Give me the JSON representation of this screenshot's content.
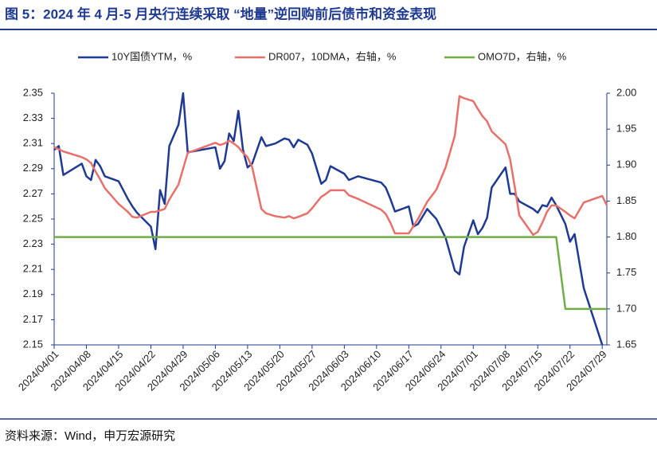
{
  "chart_data": {
    "type": "line",
    "title": "图 5：2024 年 4 月-5 月央行连续采取 “地量”逆回购前后债市和资金表现",
    "source": "资料来源：Wind，申万宏源研究",
    "x": [
      "2024/04/01",
      "2024/04/02",
      "2024/04/03",
      "2024/04/07",
      "2024/04/08",
      "2024/04/09",
      "2024/04/10",
      "2024/04/11",
      "2024/04/12",
      "2024/04/15",
      "2024/04/17",
      "2024/04/18",
      "2024/04/19",
      "2024/04/22",
      "2024/04/23",
      "2024/04/24",
      "2024/04/25",
      "2024/04/26",
      "2024/04/28",
      "2024/04/29",
      "2024/04/30",
      "2024/05/06",
      "2024/05/07",
      "2024/05/08",
      "2024/05/09",
      "2024/05/10",
      "2024/05/11",
      "2024/05/12",
      "2024/05/13",
      "2024/05/14",
      "2024/05/16",
      "2024/05/17",
      "2024/05/19",
      "2024/05/21",
      "2024/05/22",
      "2024/05/23",
      "2024/05/24",
      "2024/05/26",
      "2024/05/27",
      "2024/05/29",
      "2024/05/30",
      "2024/05/31",
      "2024/06/03",
      "2024/06/04",
      "2024/06/06",
      "2024/06/11",
      "2024/06/12",
      "2024/06/13",
      "2024/06/14",
      "2024/06/17",
      "2024/06/18",
      "2024/06/19",
      "2024/06/21",
      "2024/06/23",
      "2024/06/25",
      "2024/06/27",
      "2024/06/28",
      "2024/06/29",
      "2024/07/01",
      "2024/07/02",
      "2024/07/03",
      "2024/07/04",
      "2024/07/05",
      "2024/07/08",
      "2024/07/09",
      "2024/07/10",
      "2024/07/11",
      "2024/07/14",
      "2024/07/15",
      "2024/07/16",
      "2024/07/17",
      "2024/07/18",
      "2024/07/19",
      "2024/07/21",
      "2024/07/22",
      "2024/07/23",
      "2024/07/25",
      "2024/07/29",
      "2024/07/30"
    ],
    "xlim": [
      "2024/04/01",
      "2024/07/30"
    ],
    "xticks": [
      "2024/04/01",
      "2024/04/08",
      "2024/04/15",
      "2024/04/22",
      "2024/04/29",
      "2024/05/06",
      "2024/05/13",
      "2024/05/20",
      "2024/05/27",
      "2024/06/03",
      "2024/06/10",
      "2024/06/17",
      "2024/06/24",
      "2024/07/01",
      "2024/07/08",
      "2024/07/15",
      "2024/07/22",
      "2024/07/29"
    ],
    "ylim": [
      2.15,
      2.35
    ],
    "yticks": [
      2.15,
      2.17,
      2.19,
      2.21,
      2.23,
      2.25,
      2.27,
      2.29,
      2.31,
      2.33,
      2.35
    ],
    "y2lim": [
      1.65,
      2.0
    ],
    "y2ticks": [
      1.65,
      {
        "value": 1.7,
        "label": "1.70"
      },
      1.75,
      {
        "value": 1.8,
        "label": "1.80"
      },
      1.85,
      {
        "value": 1.9,
        "label": "1.90"
      },
      1.95,
      {
        "value": 2.0,
        "label": "2.00"
      }
    ],
    "grid": false,
    "legend": "top",
    "series": [
      {
        "name": "10Y国债YTM，%",
        "color": "#1f3a93",
        "values": [
          2.305,
          2.308,
          2.285,
          2.294,
          2.284,
          2.281,
          2.297,
          2.292,
          2.284,
          2.28,
          2.266,
          2.26,
          2.255,
          2.244,
          2.226,
          2.273,
          2.262,
          2.308,
          2.325,
          2.35,
          2.303,
          2.307,
          2.29,
          2.296,
          2.318,
          2.312,
          2.336,
          2.305,
          2.291,
          2.294,
          2.315,
          2.308,
          2.31,
          2.314,
          2.313,
          2.307,
          2.313,
          2.309,
          2.302,
          2.278,
          2.281,
          2.292,
          2.286,
          2.281,
          2.284,
          2.279,
          2.275,
          2.266,
          2.256,
          2.26,
          2.244,
          2.246,
          2.258,
          2.25,
          2.235,
          2.209,
          2.206,
          2.228,
          2.249,
          2.238,
          2.243,
          2.251,
          2.275,
          2.291,
          2.27,
          2.27,
          2.264,
          2.258,
          2.255,
          2.261,
          2.26,
          2.267,
          2.261,
          2.246,
          2.232,
          2.238,
          2.195,
          2.15,
          null
        ]
      },
      {
        "name": "DR007，10DMA，右轴，%",
        "color": "#e8706a",
        "axis": "y2",
        "values": [
          1.925,
          1.922,
          1.919,
          1.911,
          1.908,
          1.903,
          1.891,
          1.88,
          1.868,
          1.846,
          1.835,
          1.828,
          1.827,
          1.835,
          1.835,
          1.837,
          1.839,
          1.852,
          1.873,
          1.895,
          1.917,
          1.931,
          1.928,
          1.93,
          1.934,
          1.93,
          1.925,
          1.917,
          1.911,
          1.897,
          1.839,
          1.833,
          1.829,
          1.827,
          1.829,
          1.826,
          1.828,
          1.833,
          1.84,
          1.856,
          1.86,
          1.865,
          1.865,
          1.858,
          1.853,
          1.838,
          1.832,
          1.82,
          1.805,
          1.805,
          1.815,
          1.825,
          1.849,
          1.866,
          1.897,
          1.941,
          1.996,
          1.993,
          1.989,
          1.978,
          1.968,
          1.961,
          1.947,
          1.929,
          1.908,
          1.87,
          1.83,
          1.803,
          1.807,
          1.82,
          1.835,
          1.844,
          1.844,
          1.835,
          1.83,
          1.826,
          1.848,
          1.857,
          1.844
        ]
      },
      {
        "name": "OMO7D，右轴，%",
        "color": "#70ad47",
        "axis": "y2",
        "values": [
          1.8,
          1.8,
          1.8,
          1.8,
          1.8,
          1.8,
          1.8,
          1.8,
          1.8,
          1.8,
          1.8,
          1.8,
          1.8,
          1.8,
          1.8,
          1.8,
          1.8,
          1.8,
          1.8,
          1.8,
          1.8,
          1.8,
          1.8,
          1.8,
          1.8,
          1.8,
          1.8,
          1.8,
          1.8,
          1.8,
          1.8,
          1.8,
          1.8,
          1.8,
          1.8,
          1.8,
          1.8,
          1.8,
          1.8,
          1.8,
          1.8,
          1.8,
          1.8,
          1.8,
          1.8,
          1.8,
          1.8,
          1.8,
          1.8,
          1.8,
          1.8,
          1.8,
          1.8,
          1.8,
          1.8,
          1.8,
          1.8,
          1.8,
          1.8,
          1.8,
          1.8,
          1.8,
          1.8,
          1.8,
          1.8,
          1.8,
          1.8,
          1.8,
          1.8,
          1.8,
          1.8,
          1.8,
          1.8,
          1.7,
          1.7,
          1.7,
          1.7,
          1.7,
          1.7
        ]
      }
    ]
  }
}
